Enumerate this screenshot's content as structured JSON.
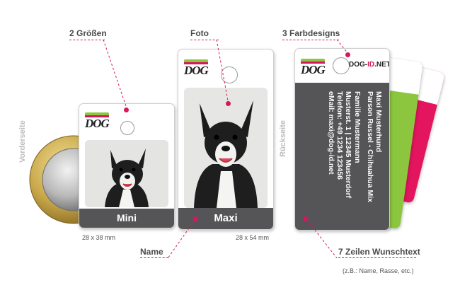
{
  "callouts": {
    "sizes": "2 Größen",
    "photo": "Foto",
    "colors": "3 Farbdesigns",
    "name": "Name",
    "text_lines": "7 Zeilen Wunschtext",
    "text_example": "(z.B.: Name, Rasse, etc.)"
  },
  "side_labels": {
    "front": "Vorderseite",
    "back": "Rückseite"
  },
  "tags": {
    "mini": {
      "name": "Mini",
      "size": "28 x 38 mm"
    },
    "maxi": {
      "name": "Maxi",
      "size": "28 x 54 mm"
    }
  },
  "logo": {
    "text": "DOG"
  },
  "brand_url": {
    "part1": "DOG-",
    "part2": "ID",
    "part3": ".NET"
  },
  "back_text": {
    "lines": [
      "Maxi Musterhund",
      "Parson Russel - Chihuahua Mix",
      "Familie Mustermann",
      "Musterst. 1 | 12345 Musterdorf",
      "Telefon: +49 1234 123456",
      "eMail: maxi@dog-id.net"
    ]
  },
  "colors": {
    "accent": "#d6165f",
    "bar": "#555557",
    "green": "#8cc63f",
    "pink": "#e3155f"
  }
}
